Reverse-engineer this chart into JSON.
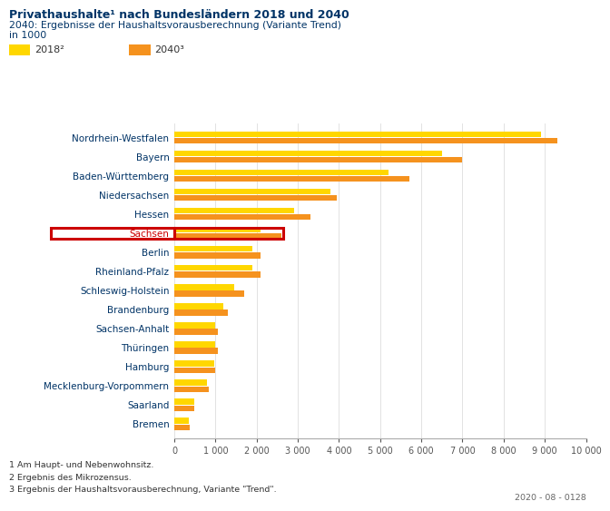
{
  "title_main": "Privathaushalte¹ nach Bundesländern 2018 und 2040",
  "title_sub1": "2040: Ergebnisse der Haushaltsvorausberechnung (Variante Trend)",
  "title_sub2": "in 1000",
  "categories": [
    "Nordrhein-Westfalen",
    "Bayern",
    "Baden-Württemberg",
    "Niedersachsen",
    "Hessen",
    "Sachsen",
    "Berlin",
    "Rheinland-Pfalz",
    "Schleswig-Holstein",
    "Brandenburg",
    "Sachsen-Anhalt",
    "Thüringen",
    "Hamburg",
    "Mecklenburg-Vorpommern",
    "Saarland",
    "Bremen"
  ],
  "values_2018": [
    8900,
    6500,
    5200,
    3800,
    2900,
    2100,
    1900,
    1900,
    1450,
    1200,
    1000,
    1000,
    960,
    800,
    490,
    360
  ],
  "values_2040": [
    9300,
    7000,
    5700,
    3950,
    3300,
    2600,
    2100,
    2100,
    1700,
    1300,
    1050,
    1050,
    1000,
    830,
    480,
    380
  ],
  "color_2018": "#FFD700",
  "color_2040": "#F5921E",
  "highlight_index": 5,
  "highlight_color": "#CC0000",
  "xlabel_ticks": [
    0,
    1000,
    2000,
    3000,
    4000,
    5000,
    6000,
    7000,
    8000,
    9000,
    10000
  ],
  "xlabel_labels": [
    "0",
    "1 000",
    "2 000",
    "3 000",
    "4 000",
    "5 000",
    "6 000",
    "7 000",
    "8 000",
    "9 000",
    "10 000"
  ],
  "footnotes": [
    "1 Am Haupt- und Nebenwohnsitz.",
    "2 Ergebnis des Mikrozensus.",
    "3 Ergebnis der Haushaltsvorausberechnung, Variante \"Trend\"."
  ],
  "date_label": "2020 - 08 - 0128",
  "legend_2018": "2018²",
  "legend_2040": "2040³",
  "title_color": "#003366",
  "label_color": "#003366",
  "sachsen_color": "#CC0000"
}
